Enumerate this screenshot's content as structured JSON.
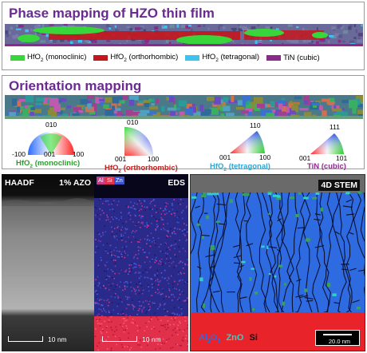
{
  "phase_panel": {
    "title": "Phase mapping of HZO thin film",
    "legend": [
      {
        "formula": "HfO",
        "sub": "2",
        "label": "(monoclinic)",
        "color": "#38d63a"
      },
      {
        "formula": "HfO",
        "sub": "2",
        "label": "(orthorhombic)",
        "color": "#c4161c"
      },
      {
        "formula": "HfO",
        "sub": "2",
        "label": "(tetragonal)",
        "color": "#3ec2ee"
      },
      {
        "formula": "",
        "sub": "",
        "label": "TiN (cubic)",
        "color": "#8c2a8c"
      }
    ]
  },
  "orientation_panel": {
    "title": "Orientation mapping",
    "keys": [
      {
        "poles": [
          "010",
          "-100",
          "001",
          "100"
        ],
        "formula": "HfO",
        "sub": "2",
        "label": "(monoclinic)",
        "color": "#2d9b2d"
      },
      {
        "poles": [
          "010",
          "001",
          "100"
        ],
        "formula": "HfO",
        "sub": "2",
        "label": "(orthorhombic)",
        "color": "#c42020"
      },
      {
        "poles": [
          "110",
          "001",
          "100"
        ],
        "formula": "HfO",
        "sub": "2",
        "label": "(tetragonal)",
        "color": "#2fa6d6"
      },
      {
        "poles": [
          "111",
          "001",
          "101"
        ],
        "formula": "",
        "sub": "",
        "label": "TiN (cubic)",
        "color": "#8c2a8c"
      }
    ]
  },
  "haadf_panel": {
    "tag": "HAADF",
    "sample": "1% AZO",
    "scale": "10 nm"
  },
  "eds_panel": {
    "tag": "EDS",
    "elements": [
      "Al",
      "Si",
      "Zn"
    ],
    "element_colors": [
      "#c83a8c",
      "#e0304a",
      "#3a52d6"
    ],
    "scale": "10 nm"
  },
  "stem_panel": {
    "tag": "4D STEM",
    "phases": [
      {
        "text": "Al",
        "sub": "2",
        "text2": "O",
        "sub2": "3",
        "color": "#2f6be0"
      },
      {
        "text": "ZnO",
        "color": "#2fd0c8"
      },
      {
        "text": "Si",
        "color": "#e8232a"
      }
    ],
    "scale": "20.0 nm"
  }
}
